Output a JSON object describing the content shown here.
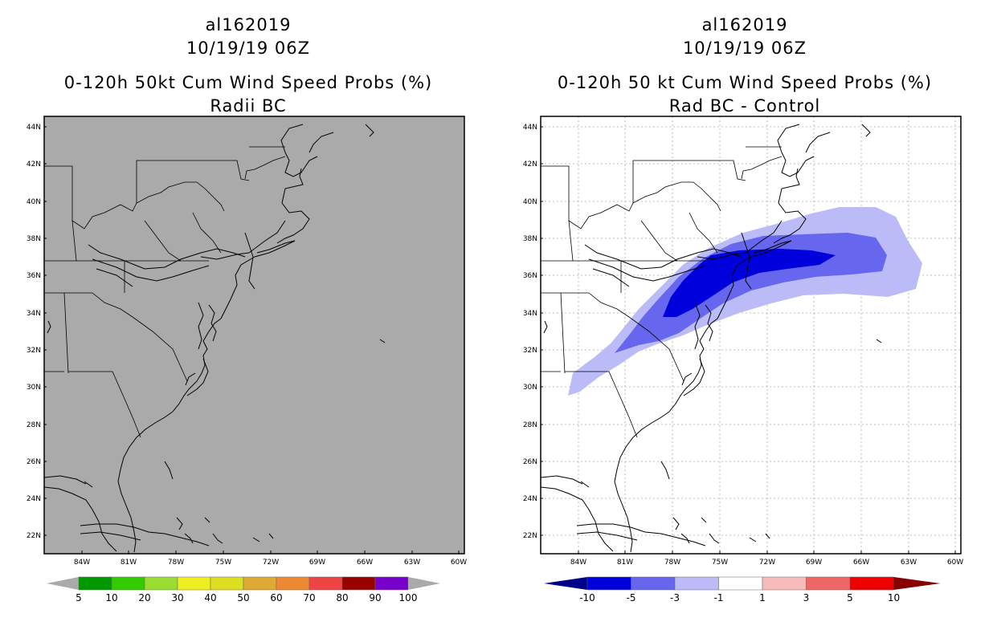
{
  "left_panel": {
    "title_lines": [
      "al162019",
      "10/19/19 06Z",
      "0-120h 50kt Cum Wind Speed Probs (%)",
      "Radii BC"
    ],
    "lat_labels": [
      "44N",
      "42N",
      "40N",
      "38N",
      "36N",
      "34N",
      "32N",
      "30N",
      "28N",
      "26N",
      "24N",
      "22N"
    ],
    "lon_labels": [
      "84W",
      "81W",
      "78W",
      "75W",
      "72W",
      "69W",
      "66W",
      "63W",
      "60W"
    ],
    "colorbar": {
      "labels": [
        "5",
        "10",
        "20",
        "30",
        "40",
        "50",
        "60",
        "70",
        "80",
        "90",
        "100"
      ],
      "colors": [
        "#009900",
        "#33cc00",
        "#99dd33",
        "#eeee22",
        "#dddd22",
        "#ddaa33",
        "#ee8833",
        "#ee4444",
        "#990000",
        "#7700cc"
      ],
      "end_color": "#aaaaaa"
    },
    "background_color": "#aaaaaa"
  },
  "right_panel": {
    "title_lines": [
      "al162019",
      "10/19/19 06Z",
      "0-120h 50 kt Cum Wind Speed Probs (%)",
      "Rad BC - Control"
    ],
    "lat_labels": [
      "44N",
      "42N",
      "40N",
      "38N",
      "36N",
      "34N",
      "32N",
      "30N",
      "28N",
      "26N",
      "24N",
      "22N"
    ],
    "lon_labels": [
      "84W",
      "81W",
      "78W",
      "75W",
      "72W",
      "69W",
      "66W",
      "63W",
      "60W"
    ],
    "colorbar": {
      "labels": [
        "-10",
        "-5",
        "-3",
        "-1",
        "1",
        "3",
        "5",
        "10"
      ],
      "colors": [
        "#0000dd",
        "#6666ee",
        "#bbbbf7",
        "#ffffff",
        "#f7bbbb",
        "#ee6666",
        "#ee0000"
      ],
      "low_end_color": "#000088",
      "high_end_color": "#880000"
    },
    "shading_colors": {
      "light": "#bbbbf7",
      "medium": "#6666ee",
      "strong": "#0000dd"
    }
  }
}
